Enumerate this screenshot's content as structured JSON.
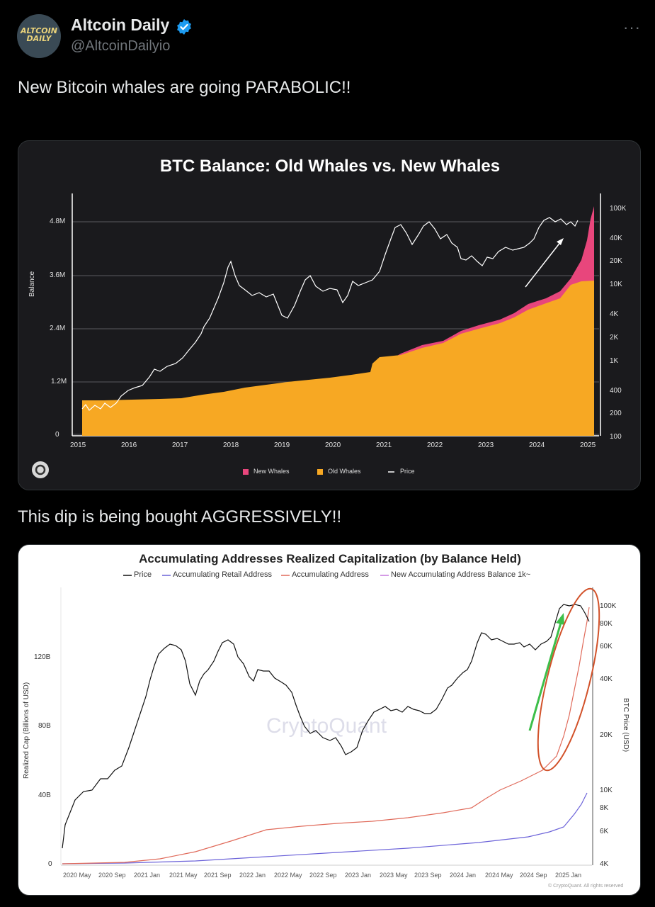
{
  "author": {
    "name": "Altcoin Daily",
    "handle": "@AltcoinDailyio",
    "avatar_text_top": "ALTCOIN",
    "avatar_text_bottom": "DAILY",
    "verified_color": "#1d9bf0"
  },
  "more_label": "···",
  "text1": "New Bitcoin whales are going PARABOLIC!!",
  "text2": "This dip is being bought AGGRESSIVELY!!",
  "chart1": {
    "title": "BTC Balance: Old Whales vs. New Whales",
    "ylabel_left": "Balance",
    "left_ticks": [
      "0",
      "1.2M",
      "2.4M",
      "3.6M",
      "4.8M"
    ],
    "right_ticks": [
      "100",
      "200",
      "400",
      "1K",
      "2K",
      "4K",
      "10K",
      "20K",
      "40K",
      "100K"
    ],
    "x_ticks": [
      "2015",
      "2016",
      "2017",
      "2018",
      "2019",
      "2020",
      "2021",
      "2022",
      "2023",
      "2024",
      "2025"
    ],
    "legend": [
      {
        "label": "New Whales",
        "color": "#e8467c"
      },
      {
        "label": "Old Whales",
        "color": "#f7a823"
      },
      {
        "label": "Price",
        "color": "#ffffff"
      }
    ]
  },
  "chart2": {
    "title": "Accumulating Addresses Realized Capitalization (by Balance Held)",
    "legend": [
      {
        "label": "Price",
        "color": "#111111"
      },
      {
        "label": "Accumulating Retail Address",
        "color": "#6c63d9"
      },
      {
        "label": "Accumulating Address",
        "color": "#e06a5a"
      },
      {
        "label": "New Accumulating Address Balance 1k~",
        "color": "#c678dd"
      }
    ],
    "ylabel_left": "Realized Cap (Billions of USD)",
    "ylabel_right": "BTC Price (USD)",
    "left_ticks": [
      "0",
      "40B",
      "80B",
      "120B"
    ],
    "right_ticks": [
      "4K",
      "6K",
      "8K",
      "10K",
      "20K",
      "40K",
      "60K",
      "80K",
      "100K"
    ],
    "x_ticks": [
      "2020 May",
      "2020 Sep",
      "2021 Jan",
      "2021 May",
      "2021 Sep",
      "2022 Jan",
      "2022 May",
      "2022 Sep",
      "2023 Jan",
      "2023 May",
      "2023 Sep",
      "2024 Jan",
      "2024 May",
      "2024 Sep",
      "2025 Jan"
    ],
    "watermark": "CryptoQuant",
    "copyright": "© CryptoQuant. All rights reserved"
  }
}
